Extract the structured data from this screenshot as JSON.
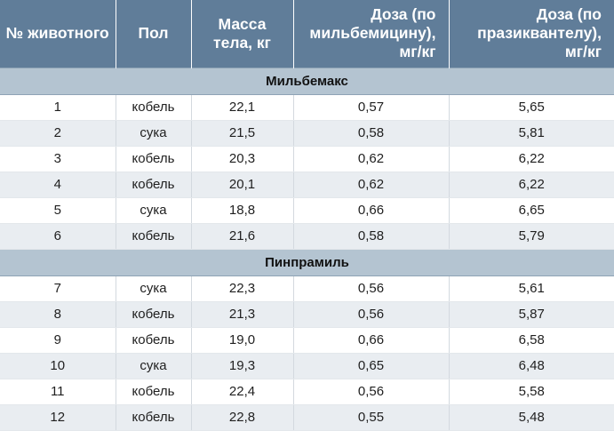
{
  "header": {
    "col_num": "№ животного",
    "col_sex": "Пол",
    "col_mass": "Масса тела, кг",
    "col_dose_milb": "Доза (по мильбемицину), мг/кг",
    "col_dose_praz": "Доза (по празиквантелу), мг/кг"
  },
  "groups": [
    {
      "title": "Мильбемакс",
      "rows": [
        {
          "num": "1",
          "sex": "кобель",
          "mass": "22,1",
          "dose_milb": "0,57",
          "dose_praz": "5,65"
        },
        {
          "num": "2",
          "sex": "сука",
          "mass": "21,5",
          "dose_milb": "0,58",
          "dose_praz": "5,81"
        },
        {
          "num": "3",
          "sex": "кобель",
          "mass": "20,3",
          "dose_milb": "0,62",
          "dose_praz": "6,22"
        },
        {
          "num": "4",
          "sex": "кобель",
          "mass": "20,1",
          "dose_milb": "0,62",
          "dose_praz": "6,22"
        },
        {
          "num": "5",
          "sex": "сука",
          "mass": "18,8",
          "dose_milb": "0,66",
          "dose_praz": "6,65"
        },
        {
          "num": "6",
          "sex": "кобель",
          "mass": "21,6",
          "dose_milb": "0,58",
          "dose_praz": "5,79"
        }
      ]
    },
    {
      "title": "Пинпрамиль",
      "rows": [
        {
          "num": "7",
          "sex": "сука",
          "mass": "22,3",
          "dose_milb": "0,56",
          "dose_praz": "5,61"
        },
        {
          "num": "8",
          "sex": "кобель",
          "mass": "21,3",
          "dose_milb": "0,56",
          "dose_praz": "5,87"
        },
        {
          "num": "9",
          "sex": "кобель",
          "mass": "19,0",
          "dose_milb": "0,66",
          "dose_praz": "6,58"
        },
        {
          "num": "10",
          "sex": "сука",
          "mass": "19,3",
          "dose_milb": "0,65",
          "dose_praz": "6,48"
        },
        {
          "num": "11",
          "sex": "кобель",
          "mass": "22,4",
          "dose_milb": "0,56",
          "dose_praz": "5,58"
        },
        {
          "num": "12",
          "sex": "кобель",
          "mass": "22,8",
          "dose_milb": "0,55",
          "dose_praz": "5,48"
        }
      ]
    }
  ],
  "colors": {
    "header_bg": "#607d99",
    "group_bg": "#b4c4d1",
    "row_alt_bg": "#e9edf1"
  }
}
